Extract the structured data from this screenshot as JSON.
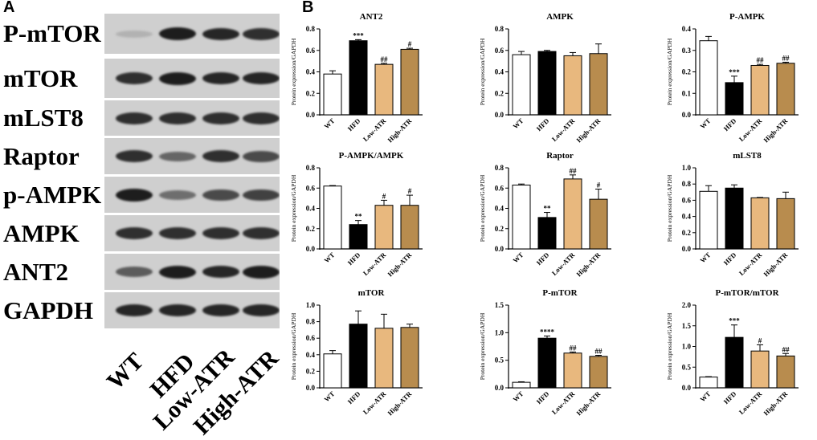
{
  "panel_a": {
    "letter": "A",
    "blots": [
      {
        "label": "P-mTOR",
        "levels": [
          0.12,
          0.95,
          0.9,
          0.85
        ]
      },
      {
        "label": "mTOR",
        "levels": [
          0.85,
          0.95,
          0.9,
          0.9
        ]
      },
      {
        "label": "mLST8",
        "levels": [
          0.85,
          0.85,
          0.85,
          0.85
        ]
      },
      {
        "label": "Raptor",
        "levels": [
          0.85,
          0.55,
          0.85,
          0.7
        ]
      },
      {
        "label": "p-AMPK",
        "levels": [
          0.95,
          0.5,
          0.7,
          0.75
        ]
      },
      {
        "label": "AMPK",
        "levels": [
          0.85,
          0.85,
          0.85,
          0.85
        ]
      },
      {
        "label": "ANT2",
        "levels": [
          0.6,
          0.95,
          0.9,
          0.95
        ]
      },
      {
        "label": "GAPDH",
        "levels": [
          0.9,
          0.9,
          0.9,
          0.9
        ]
      }
    ],
    "lanes": [
      "WT",
      "HFD",
      "Low-ATR",
      "High-ATR"
    ]
  },
  "panel_b": {
    "letter": "B"
  },
  "colors": {
    "WT": "#ffffff",
    "HFD": "#000000",
    "Low-ATR": "#e8b87e",
    "High-ATR": "#b88c4e"
  },
  "chart_data": [
    {
      "type": "bar",
      "title": "ANT2",
      "ylabel": "Protein expression/GAPDH",
      "categories": [
        "WT",
        "HFD",
        "Low-ATR",
        "High-ATR"
      ],
      "values": [
        0.38,
        0.69,
        0.47,
        0.61
      ],
      "errors": [
        0.03,
        0.01,
        0.01,
        0.01
      ],
      "annotations": [
        "",
        "***",
        "##",
        "#"
      ],
      "ylim": [
        0,
        0.8
      ],
      "yticks": [
        "0.0",
        "0.2",
        "0.4",
        "0.6",
        "0.8"
      ]
    },
    {
      "type": "bar",
      "title": "AMPK",
      "ylabel": "Protein expression/GAPDH",
      "categories": [
        "WT",
        "HFD",
        "Low-ATR",
        "High-ATR"
      ],
      "values": [
        0.56,
        0.59,
        0.55,
        0.57
      ],
      "errors": [
        0.03,
        0.01,
        0.03,
        0.09
      ],
      "annotations": [
        "",
        "",
        "",
        ""
      ],
      "ylim": [
        0,
        0.8
      ],
      "yticks": [
        "0.0",
        "0.2",
        "0.4",
        "0.6",
        "0.8"
      ]
    },
    {
      "type": "bar",
      "title": "P-AMPK",
      "ylabel": "Protein expression/GAPDH",
      "categories": [
        "WT",
        "HFD",
        "Low-ATR",
        "High-ATR"
      ],
      "values": [
        0.345,
        0.15,
        0.23,
        0.24
      ],
      "errors": [
        0.02,
        0.03,
        0.005,
        0.005
      ],
      "annotations": [
        "",
        "***",
        "##",
        "##"
      ],
      "ylim": [
        0,
        0.4
      ],
      "yticks": [
        "0.0",
        "0.1",
        "0.2",
        "0.3",
        "0.4"
      ]
    },
    {
      "type": "bar",
      "title": "P-AMPK/AMPK",
      "ylabel": "Protein expression/GAPDH",
      "categories": [
        "WT",
        "HFD",
        "Low-ATR",
        "High-ATR"
      ],
      "values": [
        0.62,
        0.24,
        0.43,
        0.43
      ],
      "errors": [
        0.005,
        0.04,
        0.05,
        0.1
      ],
      "annotations": [
        "",
        "**",
        "#",
        "#"
      ],
      "ylim": [
        0,
        0.8
      ],
      "yticks": [
        "0.0",
        "0.2",
        "0.4",
        "0.6",
        "0.8"
      ]
    },
    {
      "type": "bar",
      "title": "Raptor",
      "ylabel": "Protein expression/GAPDH",
      "categories": [
        "WT",
        "HFD",
        "Low-ATR",
        "High-ATR"
      ],
      "values": [
        0.63,
        0.31,
        0.69,
        0.49
      ],
      "errors": [
        0.01,
        0.05,
        0.04,
        0.1
      ],
      "annotations": [
        "",
        "**",
        "##",
        "#"
      ],
      "ylim": [
        0,
        0.8
      ],
      "yticks": [
        "0.0",
        "0.2",
        "0.4",
        "0.6",
        "0.8"
      ]
    },
    {
      "type": "bar",
      "title": "mLST8",
      "ylabel": "Protein expression/GAPDH",
      "categories": [
        "WT",
        "HFD",
        "Low-ATR",
        "High-ATR"
      ],
      "values": [
        0.71,
        0.75,
        0.63,
        0.62
      ],
      "errors": [
        0.07,
        0.04,
        0.005,
        0.08
      ],
      "annotations": [
        "",
        "",
        "",
        ""
      ],
      "ylim": [
        0,
        1.0
      ],
      "yticks": [
        "0.0",
        "0.2",
        "0.4",
        "0.6",
        "0.8",
        "1.0"
      ]
    },
    {
      "type": "bar",
      "title": "mTOR",
      "ylabel": "Protein expression/GAPDH",
      "categories": [
        "WT",
        "HFD",
        "Low-ATR",
        "High-ATR"
      ],
      "values": [
        0.41,
        0.77,
        0.72,
        0.73
      ],
      "errors": [
        0.04,
        0.16,
        0.17,
        0.04
      ],
      "annotations": [
        "",
        "",
        "",
        ""
      ],
      "ylim": [
        0,
        1.0
      ],
      "yticks": [
        "0.0",
        "0.2",
        "0.4",
        "0.6",
        "0.8",
        "1.0"
      ]
    },
    {
      "type": "bar",
      "title": "P-mTOR",
      "ylabel": "Protein expression/GAPDH",
      "categories": [
        "WT",
        "HFD",
        "Low-ATR",
        "High-ATR"
      ],
      "values": [
        0.1,
        0.9,
        0.63,
        0.57
      ],
      "errors": [
        0.01,
        0.04,
        0.02,
        0.02
      ],
      "annotations": [
        "",
        "****",
        "##",
        "##"
      ],
      "ylim": [
        0,
        1.5
      ],
      "yticks": [
        "0.0",
        "0.5",
        "1.0",
        "1.5"
      ]
    },
    {
      "type": "bar",
      "title": "P-mTOR/mTOR",
      "ylabel": "Protein expression/GAPDH",
      "categories": [
        "WT",
        "HFD",
        "Low-ATR",
        "High-ATR"
      ],
      "values": [
        0.26,
        1.22,
        0.89,
        0.77
      ],
      "errors": [
        0.01,
        0.3,
        0.15,
        0.06
      ],
      "annotations": [
        "",
        "***",
        "#",
        "##"
      ],
      "ylim": [
        0,
        2.0
      ],
      "yticks": [
        "0.0",
        "0.5",
        "1.0",
        "1.5",
        "2.0"
      ]
    }
  ]
}
